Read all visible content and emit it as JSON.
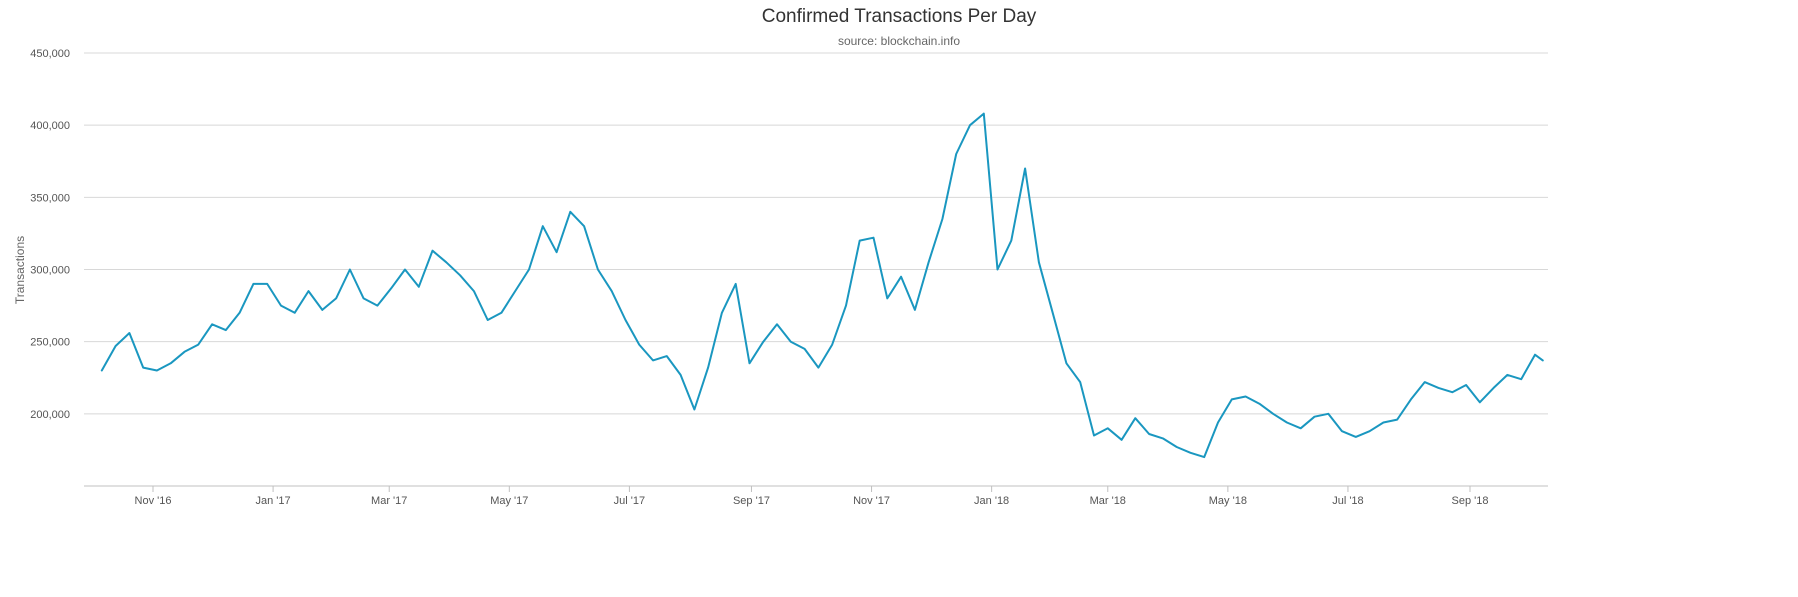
{
  "chart_data": {
    "type": "line",
    "title": "Confirmed Transactions Per Day",
    "subtitle": "source: blockchain.info",
    "xlabel": "",
    "ylabel": "Transactions",
    "ylim": [
      150000,
      450000
    ],
    "y_ticks": [
      {
        "value": 200000,
        "label": "200,000"
      },
      {
        "value": 250000,
        "label": "250,000"
      },
      {
        "value": 300000,
        "label": "300,000"
      },
      {
        "value": 350000,
        "label": "350,000"
      },
      {
        "value": 400000,
        "label": "400,000"
      },
      {
        "value": 450000,
        "label": "450,000"
      }
    ],
    "x_ticks": [
      "Nov '16",
      "Jan '17",
      "Mar '17",
      "May '17",
      "Jul '17",
      "Sep '17",
      "Nov '17",
      "Jan '18",
      "Mar '18",
      "May '18",
      "Jul '18",
      "Sep '18"
    ],
    "grid": true,
    "legend": "none",
    "line_color": "#1a97c0",
    "series": [
      {
        "x": [
          "2016-10-06",
          "2016-10-13",
          "2016-10-20",
          "2016-10-27",
          "2016-11-03",
          "2016-11-10",
          "2016-11-17",
          "2016-11-24",
          "2016-12-01",
          "2016-12-08",
          "2016-12-15",
          "2016-12-22",
          "2016-12-29",
          "2017-01-05",
          "2017-01-12",
          "2017-01-19",
          "2017-01-26",
          "2017-02-02",
          "2017-02-09",
          "2017-02-16",
          "2017-02-23",
          "2017-03-02",
          "2017-03-09",
          "2017-03-16",
          "2017-03-23",
          "2017-03-30",
          "2017-04-06",
          "2017-04-13",
          "2017-04-20",
          "2017-04-27",
          "2017-05-04",
          "2017-05-11",
          "2017-05-18",
          "2017-05-25",
          "2017-06-01",
          "2017-06-08",
          "2017-06-15",
          "2017-06-22",
          "2017-06-29",
          "2017-07-06",
          "2017-07-13",
          "2017-07-20",
          "2017-07-27",
          "2017-08-03",
          "2017-08-10",
          "2017-08-17",
          "2017-08-24",
          "2017-08-31",
          "2017-09-07",
          "2017-09-14",
          "2017-09-21",
          "2017-09-28",
          "2017-10-05",
          "2017-10-12",
          "2017-10-19",
          "2017-10-26",
          "2017-11-02",
          "2017-11-09",
          "2017-11-16",
          "2017-11-23",
          "2017-11-30",
          "2017-12-07",
          "2017-12-14",
          "2017-12-21",
          "2017-12-28",
          "2018-01-04",
          "2018-01-11",
          "2018-01-18",
          "2018-01-25",
          "2018-02-01",
          "2018-02-08",
          "2018-02-15",
          "2018-02-22",
          "2018-03-01",
          "2018-03-08",
          "2018-03-15",
          "2018-03-22",
          "2018-03-29",
          "2018-04-05",
          "2018-04-12",
          "2018-04-19",
          "2018-04-26",
          "2018-05-03",
          "2018-05-10",
          "2018-05-17",
          "2018-05-24",
          "2018-05-31",
          "2018-06-07",
          "2018-06-14",
          "2018-06-21",
          "2018-06-28",
          "2018-07-05",
          "2018-07-12",
          "2018-07-19",
          "2018-07-26",
          "2018-08-02",
          "2018-08-09",
          "2018-08-16",
          "2018-08-23",
          "2018-08-30",
          "2018-09-06",
          "2018-09-13",
          "2018-09-20",
          "2018-09-27",
          "2018-10-04",
          "2018-10-08"
        ],
        "values": [
          230000,
          247000,
          256000,
          232000,
          230000,
          235000,
          243000,
          248000,
          262000,
          258000,
          270000,
          290000,
          290000,
          275000,
          270000,
          285000,
          272000,
          280000,
          300000,
          280000,
          275000,
          287000,
          300000,
          288000,
          313000,
          305000,
          296000,
          285000,
          265000,
          270000,
          285000,
          300000,
          330000,
          312000,
          340000,
          330000,
          300000,
          285000,
          265000,
          248000,
          237000,
          240000,
          227000,
          203000,
          232000,
          270000,
          290000,
          235000,
          250000,
          262000,
          250000,
          245000,
          232000,
          248000,
          275000,
          320000,
          322000,
          280000,
          295000,
          272000,
          305000,
          335000,
          380000,
          400000,
          408000,
          300000,
          320000,
          370000,
          305000,
          270000,
          235000,
          222000,
          185000,
          190000,
          182000,
          197000,
          186000,
          183000,
          177000,
          173000,
          170000,
          194000,
          210000,
          212000,
          207000,
          200000,
          194000,
          190000,
          198000,
          200000,
          188000,
          184000,
          188000,
          194000,
          196000,
          210000,
          222000,
          218000,
          215000,
          220000,
          208000,
          218000,
          227000,
          224000,
          241000,
          237000
        ]
      }
    ]
  }
}
